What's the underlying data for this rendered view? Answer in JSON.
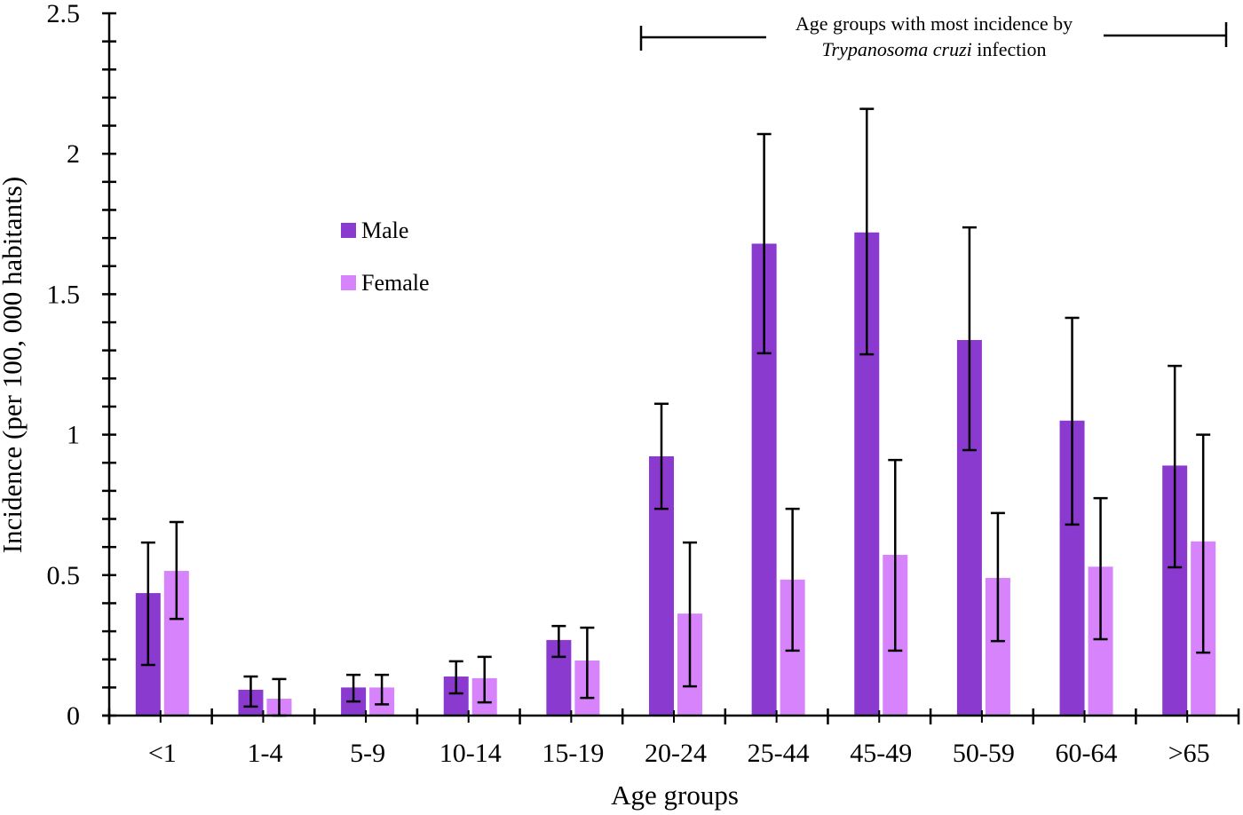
{
  "chart_data": {
    "type": "bar",
    "title": "",
    "xlabel": "Age groups",
    "ylabel": "Incidence (per 100, 000 habitants)",
    "ylim": [
      0,
      2.5
    ],
    "y_major_ticks": [
      "0",
      "0.5",
      "1",
      "1.5",
      "2",
      "2.5"
    ],
    "y_major_values": [
      0,
      0.5,
      1,
      1.5,
      2,
      2.5
    ],
    "y_minor_step": 0.1,
    "grid": false,
    "legend_position": "upper-left-center",
    "categories": [
      "<1",
      "1-4",
      "5-9",
      "10-14",
      "15-19",
      "20-24",
      "25-44",
      "45-49",
      "50-59",
      "60-64",
      ">65"
    ],
    "series": [
      {
        "name": "Male",
        "color": "#8b3acf",
        "values": [
          0.436,
          0.092,
          0.1,
          0.139,
          0.269,
          0.923,
          1.68,
          1.72,
          1.337,
          1.05,
          0.89
        ],
        "error_upper": [
          0.616,
          0.139,
          0.145,
          0.193,
          0.319,
          1.11,
          2.07,
          2.16,
          1.738,
          1.416,
          1.245
        ],
        "error_lower": [
          0.18,
          0.032,
          0.05,
          0.079,
          0.209,
          0.736,
          1.29,
          1.286,
          0.945,
          0.68,
          0.528
        ]
      },
      {
        "name": "Female",
        "color": "#d783fb",
        "values": [
          0.515,
          0.06,
          0.1,
          0.133,
          0.196,
          0.363,
          0.484,
          0.572,
          0.49,
          0.53,
          0.62
        ],
        "error_upper": [
          0.689,
          0.13,
          0.145,
          0.209,
          0.313,
          0.616,
          0.736,
          0.91,
          0.721,
          0.774,
          1.0
        ],
        "error_lower": [
          0.344,
          0.0,
          0.04,
          0.047,
          0.063,
          0.104,
          0.231,
          0.231,
          0.265,
          0.272,
          0.224
        ]
      }
    ],
    "annotation": {
      "line1": "Age groups with most incidence by",
      "line2_italic": "Trypanosoma cruzi",
      "line2_rest": " infection",
      "span_from": "20-24",
      "span_to": ">65"
    }
  }
}
